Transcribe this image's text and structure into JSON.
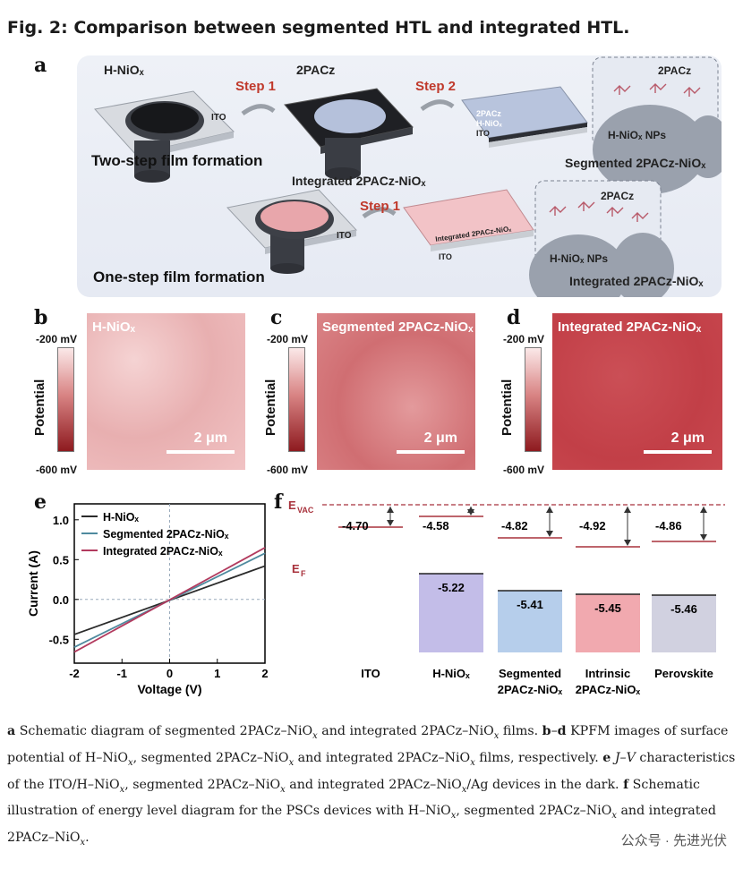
{
  "figure_title": "Fig. 2: Comparison between segmented HTL and integrated HTL.",
  "panel_a": {
    "letter": "a",
    "hnio_label": "H-NiOₓ",
    "pacz_label": "2PACz",
    "step1": "Step 1",
    "step2": "Step 2",
    "ito": "ITO",
    "two_step": "Two-step film formation",
    "one_step": "One-step film formation",
    "integrated_top": "Integrated 2PACz-NiOₓ",
    "segmented_caption": "Segmented 2PACz-NiOₓ",
    "integrated_caption": "Integrated 2PACz-NiOₓ",
    "layer_2pacz": "2PACz",
    "layer_hnio": "H-NiOₓ",
    "layer_ito": "ITO",
    "layer_integrated": "Integrated 2PACz-NiOₓ",
    "np_label": "H-NiOₓ NPs",
    "zoom_2pacz": "2PACz"
  },
  "panels_kpfm": [
    {
      "letter": "b",
      "title": "H-NiOₓ",
      "cb_top": "-200 mV",
      "cb_bottom": "-600 mV",
      "cb_label": "Potential",
      "scale": "2 μm",
      "color": "#f0c4c4"
    },
    {
      "letter": "c",
      "title": "Segmented 2PACz-NiOₓ",
      "cb_top": "-200 mV",
      "cb_bottom": "-600 mV",
      "cb_label": "Potential",
      "scale": "2 μm",
      "color": "#d77a7d"
    },
    {
      "letter": "d",
      "title": "Integrated 2PACz-NiOₓ",
      "cb_top": "-200 mV",
      "cb_bottom": "-600 mV",
      "cb_label": "Potential",
      "scale": "2 μm",
      "color": "#c4444b"
    }
  ],
  "chart_data": [
    {
      "panel": "e",
      "type": "line",
      "xlabel": "Voltage (V)",
      "ylabel": "Current (A)",
      "xlim": [
        -2,
        2
      ],
      "ylim": [
        -0.8,
        1.2
      ],
      "x_ticks": [
        "-2",
        "-1",
        "0",
        "1",
        "2"
      ],
      "y_ticks": [
        "1.0",
        "0.5",
        "0.0",
        "-0.5"
      ],
      "y_tick_values": [
        1.0,
        0.5,
        0.0,
        -0.5
      ],
      "grid": false,
      "legend_position": "top-left",
      "series": [
        {
          "name": "H-NiOₓ",
          "color": "#2b2b2b",
          "x": [
            -2,
            2
          ],
          "y": [
            -0.44,
            0.42
          ]
        },
        {
          "name": "Segmented 2PACz-NiOₓ",
          "color": "#4f8a9e",
          "x": [
            -2,
            2
          ],
          "y": [
            -0.6,
            0.58
          ]
        },
        {
          "name": "Integrated 2PACz-NiOₓ",
          "color": "#b23a5e",
          "x": [
            -2,
            2
          ],
          "y": [
            -0.66,
            0.65
          ]
        }
      ]
    },
    {
      "panel": "f",
      "type": "bar",
      "categories": [
        "ITO",
        "H-NiOₓ",
        "Segmented 2PACz-NiOₓ",
        "Intrinsic 2PACz-NiOₓ",
        "Perovskite"
      ],
      "work_function": [
        "-4.70",
        "-4.58",
        "-4.82",
        "-4.92",
        "-4.86"
      ],
      "valence_band": [
        null,
        "-5.22",
        "-5.41",
        "-5.45",
        "-5.46"
      ],
      "vb_colors": [
        null,
        "#b9b1e4",
        "#a9c6e8",
        "#ef9aa1",
        "#c9c9db"
      ],
      "evac_label": "E",
      "evac_sub": "VAC",
      "ef_label": "E",
      "ef_sub": "F"
    }
  ],
  "caption": {
    "a_bold": "a",
    "a_text": " Schematic diagram of segmented 2PACz–NiO",
    "x1": "x",
    "a_text2": " and integrated 2PACz–NiO",
    "x2": "x",
    "a_text3": " films. ",
    "bd_bold": "b",
    "dash": "–",
    "d_bold": "d",
    "bd_text": " KPFM images of surface potential of H–NiO",
    "x3": "x",
    "bd_text2": ", segmented 2PACz–NiO",
    "x4": "x",
    "bd_text3": " and integrated 2PACz–NiO",
    "x5": "x",
    "bd_text4": " films, respectively. ",
    "e_bold": "e",
    "e_jv": "J–V",
    "e_text": " characteristics of the ITO/H–NiO",
    "x6": "x",
    "e_text2": ", segmented 2PACz–NiO",
    "x7": "x",
    "e_text3": " and integrated 2PACz–NiO",
    "x8": "x",
    "e_text4": "/Ag devices in the dark. ",
    "f_bold": "f",
    "f_text": " Schematic illustration of energy level diagram for the PSCs devices with H–NiO",
    "x9": "x",
    "f_text2": ", segmented 2PACz–NiO",
    "x10": "x",
    "f_text3": " and integrated 2PACz–NiO",
    "x11": "x",
    "f_text4": "."
  },
  "watermark": "公众号 · 先进光伏"
}
